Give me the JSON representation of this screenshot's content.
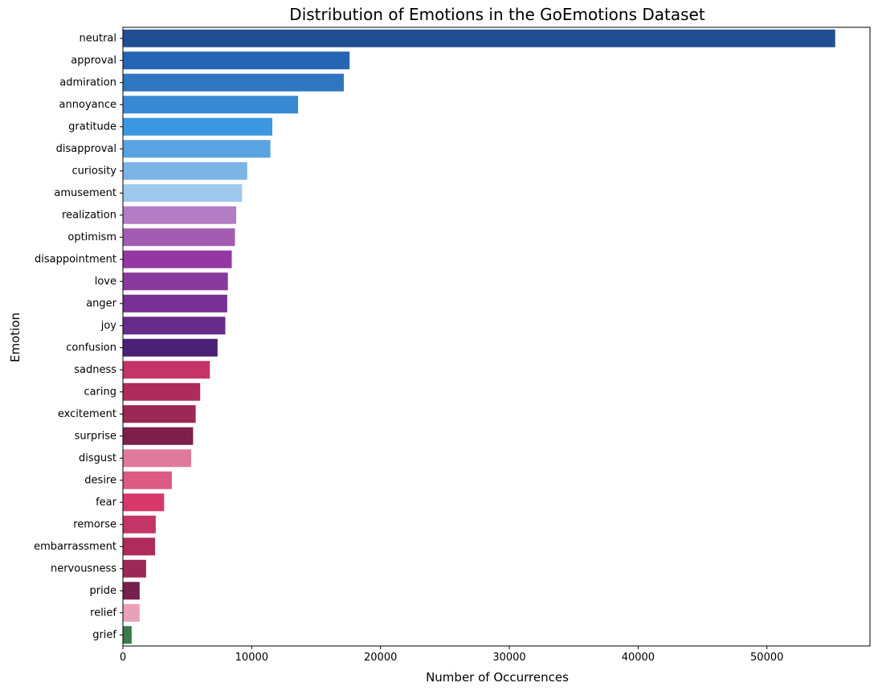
{
  "chart_data": {
    "type": "bar",
    "orientation": "horizontal",
    "title": "Distribution of Emotions in the GoEmotions Dataset",
    "xlabel": "Number of Occurrences",
    "ylabel": "Emotion",
    "xlim": [
      0,
      58000
    ],
    "xticks": [
      0,
      10000,
      20000,
      30000,
      40000,
      50000
    ],
    "grid": false,
    "legend": "none",
    "categories": [
      "neutral",
      "approval",
      "admiration",
      "annoyance",
      "gratitude",
      "disapproval",
      "curiosity",
      "amusement",
      "realization",
      "optimism",
      "disappointment",
      "love",
      "anger",
      "joy",
      "confusion",
      "sadness",
      "caring",
      "excitement",
      "surprise",
      "disgust",
      "desire",
      "fear",
      "remorse",
      "embarrassment",
      "nervousness",
      "pride",
      "relief",
      "grief"
    ],
    "values": [
      55300,
      17600,
      17150,
      13600,
      11600,
      11450,
      9650,
      9250,
      8800,
      8700,
      8450,
      8150,
      8100,
      7950,
      7350,
      6750,
      6000,
      5650,
      5450,
      5300,
      3800,
      3200,
      2550,
      2500,
      1800,
      1300,
      1300,
      680
    ],
    "colors": [
      "#214e93",
      "#2565b3",
      "#2f76c0",
      "#3789d3",
      "#3b97e0",
      "#5aa3e1",
      "#7bb4e5",
      "#9fc9ec",
      "#b37cc4",
      "#a25cb2",
      "#9437a2",
      "#883a9d",
      "#763193",
      "#672c89",
      "#4b2177",
      "#c43567",
      "#ae2b5b",
      "#9c2855",
      "#7d1f4b",
      "#e07a9c",
      "#db5b85",
      "#d7386b",
      "#c43567",
      "#ae2b5b",
      "#9c2855",
      "#75204d",
      "#e9a1ba",
      "#3a7a4c"
    ]
  }
}
